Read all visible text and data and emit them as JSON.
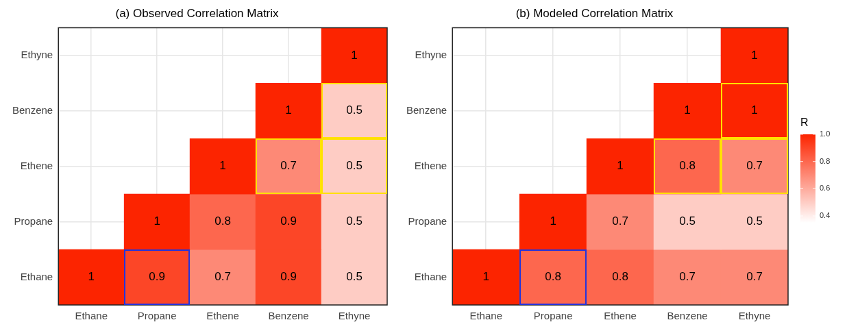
{
  "chart_data": [
    {
      "type": "heatmap",
      "title": "(a) Observed Correlation Matrix",
      "categories": [
        "Ethane",
        "Propane",
        "Ethene",
        "Benzene",
        "Ethyne"
      ],
      "y_categories": [
        "Ethyne",
        "Benzene",
        "Ethene",
        "Propane",
        "Ethane"
      ],
      "grid": true,
      "data_labels": true,
      "cells": [
        [
          null,
          null,
          null,
          null,
          1
        ],
        [
          null,
          null,
          null,
          1,
          0.5
        ],
        [
          null,
          null,
          1,
          0.7,
          0.5
        ],
        [
          null,
          1,
          0.8,
          0.9,
          0.5
        ],
        [
          1,
          0.9,
          0.7,
          0.9,
          0.5
        ]
      ]
    },
    {
      "type": "heatmap",
      "title": "(b) Modeled Correlation Matrix",
      "categories": [
        "Ethane",
        "Propane",
        "Ethene",
        "Benzene",
        "Ethyne"
      ],
      "y_categories": [
        "Ethyne",
        "Benzene",
        "Ethene",
        "Propane",
        "Ethane"
      ],
      "grid": true,
      "data_labels": true,
      "clabel": "R",
      "clim": [
        0.35,
        1
      ],
      "cticks": [
        {
          "value": 0.4,
          "label": "0.4"
        },
        {
          "value": 0.6,
          "label": "0.6"
        },
        {
          "value": 0.8,
          "label": "0.8"
        },
        {
          "value": 1,
          "label": "1.0"
        }
      ],
      "cells": [
        [
          null,
          null,
          null,
          null,
          1
        ],
        [
          null,
          null,
          null,
          1,
          1
        ],
        [
          null,
          null,
          1,
          0.8,
          0.7
        ],
        [
          null,
          1,
          0.7,
          0.5,
          0.5
        ],
        [
          1,
          0.8,
          0.8,
          0.7,
          0.7
        ]
      ]
    }
  ]
}
